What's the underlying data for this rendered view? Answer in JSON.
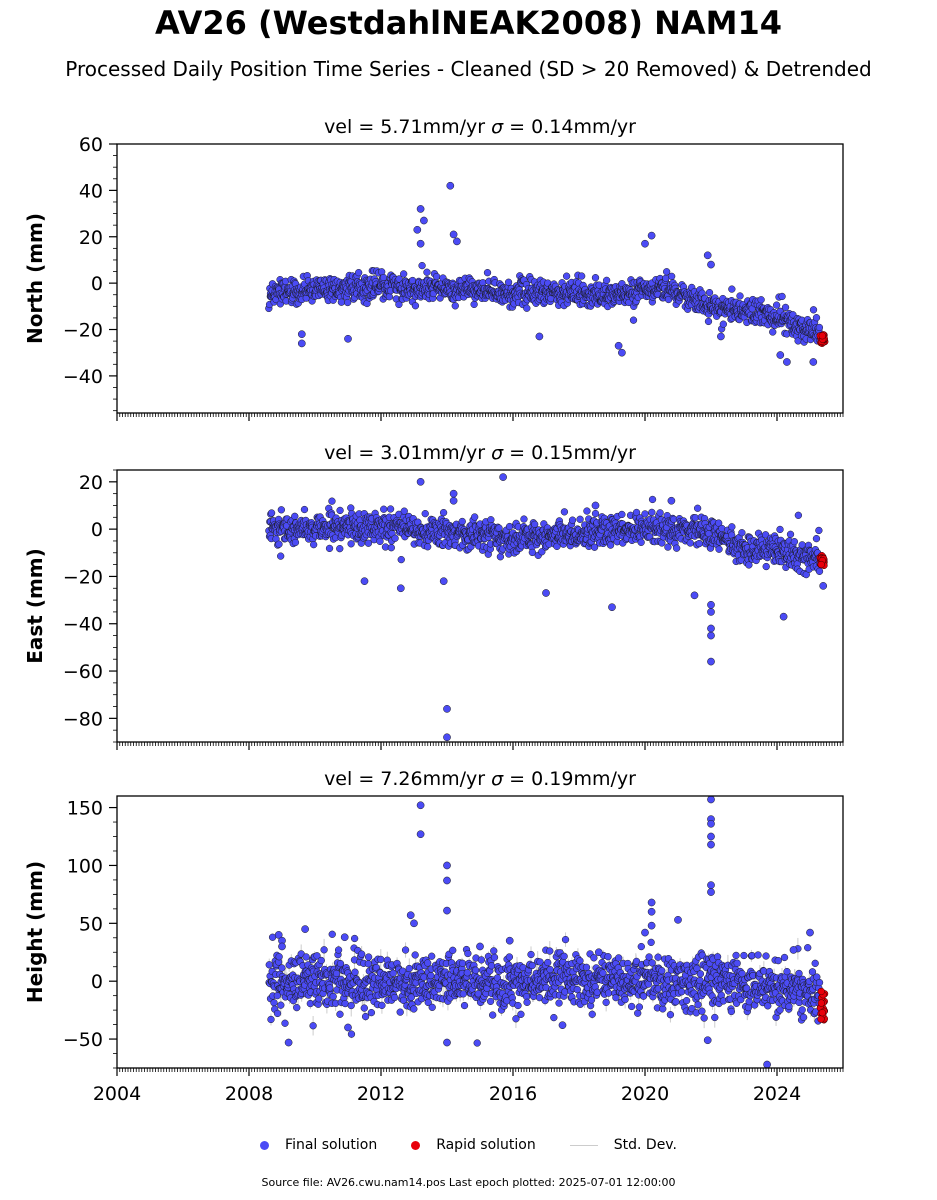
{
  "title": "AV26 (WestdahlNEAK2008) NAM14",
  "subtitle": "Processed Daily Position Time Series - Cleaned (SD > 20 Removed) & Detrended",
  "legend": {
    "final": "Final solution",
    "rapid": "Rapid solution",
    "std": "Std. Dev."
  },
  "source_note": "Source file: AV26.cwu.nam14.pos  Last epoch plotted: 2025-07-01 12:00:00",
  "colors": {
    "final": "#4b4bf5",
    "rapid": "#e8000b",
    "std_dev": "#cccccc"
  },
  "chart_data": [
    {
      "type": "scatter",
      "panel": "north",
      "title_vel": "vel = 5.71mm/yr",
      "title_sigma_symbol": "σ",
      "title_sigma_rest": " = 0.14mm/yr",
      "ylabel": "North (mm)",
      "xlim": [
        2004,
        2026
      ],
      "ylim": [
        -56,
        60
      ],
      "yticks": [
        "−40",
        "−20",
        "0",
        "20",
        "40",
        "60"
      ],
      "ytick_values": [
        -40,
        -20,
        0,
        20,
        40,
        60
      ],
      "xticks": [
        2004,
        2008,
        2012,
        2016,
        2020,
        2024
      ],
      "xtick_labels_shown": false,
      "trend_x": [
        2008.6,
        2012,
        2016,
        2019,
        2020.5,
        2022,
        2023.5,
        2025.3
      ],
      "trend_y": [
        -4,
        -1,
        -4,
        -5,
        -2,
        -10,
        -13,
        -22
      ],
      "scatter_sd": 2.5,
      "rapid_x": [
        2025.3,
        2025.45
      ],
      "rapid_y": [
        -22,
        -26
      ],
      "outliers": [
        [
          2014.1,
          42
        ],
        [
          2013.2,
          32
        ],
        [
          2013.3,
          27
        ],
        [
          2013.1,
          23
        ],
        [
          2014.2,
          21
        ],
        [
          2014.3,
          18
        ],
        [
          2013.2,
          17
        ],
        [
          2020.2,
          20.5
        ],
        [
          2020.0,
          17
        ],
        [
          2021.9,
          12
        ],
        [
          2022.0,
          8
        ],
        [
          2009.6,
          -26
        ],
        [
          2009.6,
          -22
        ],
        [
          2019.3,
          -30
        ],
        [
          2019.2,
          -27
        ],
        [
          2011.0,
          -24
        ],
        [
          2024.3,
          -34
        ],
        [
          2025.1,
          -34
        ],
        [
          2024.1,
          -31
        ],
        [
          2016.8,
          -23
        ],
        [
          2022.3,
          -23
        ]
      ]
    },
    {
      "type": "scatter",
      "panel": "east",
      "title_vel": "vel = 3.01mm/yr",
      "title_sigma_symbol": "σ",
      "title_sigma_rest": " = 0.15mm/yr",
      "ylabel": "East (mm)",
      "xlim": [
        2004,
        2026
      ],
      "ylim": [
        -90,
        25
      ],
      "yticks": [
        "−80",
        "−60",
        "−40",
        "−20",
        "0",
        "20"
      ],
      "ytick_values": [
        -80,
        -60,
        -40,
        -20,
        0,
        20
      ],
      "xticks": [
        2004,
        2008,
        2012,
        2016,
        2020,
        2024
      ],
      "xtick_labels_shown": false,
      "trend_x": [
        2008.6,
        2012,
        2016,
        2020,
        2021.5,
        2023,
        2024.5,
        2025.3
      ],
      "trend_y": [
        0,
        1,
        -4,
        0,
        0,
        -8,
        -10,
        -13
      ],
      "scatter_sd": 3,
      "rapid_x": [
        2025.3,
        2025.45
      ],
      "rapid_y": [
        -11,
        -16
      ],
      "outliers": [
        [
          2014.0,
          -76
        ],
        [
          2014.0,
          -88
        ],
        [
          2022.0,
          -56
        ],
        [
          2022.0,
          -45
        ],
        [
          2022.0,
          -42
        ],
        [
          2022.0,
          -35
        ],
        [
          2022.0,
          -32
        ],
        [
          2019.0,
          -33
        ],
        [
          2024.2,
          -37
        ],
        [
          2025.4,
          -24
        ],
        [
          2013.2,
          20
        ],
        [
          2015.7,
          22
        ],
        [
          2014.2,
          15
        ],
        [
          2014.2,
          12
        ],
        [
          2020.8,
          12
        ],
        [
          2018.5,
          10
        ],
        [
          2021.5,
          -28
        ],
        [
          2017.0,
          -27
        ],
        [
          2012.6,
          -25
        ],
        [
          2011.5,
          -22
        ],
        [
          2013.9,
          -22
        ]
      ]
    },
    {
      "type": "scatter",
      "panel": "height",
      "title_vel": "vel = 7.26mm/yr",
      "title_sigma_symbol": "σ",
      "title_sigma_rest": " = 0.19mm/yr",
      "ylabel": "Height (mm)",
      "xlim": [
        2004,
        2026
      ],
      "ylim": [
        -75,
        160
      ],
      "yticks": [
        "−50",
        "0",
        "50",
        "100",
        "150"
      ],
      "ytick_values": [
        -50,
        0,
        50,
        100,
        150
      ],
      "xticks": [
        2004,
        2008,
        2012,
        2016,
        2020,
        2024
      ],
      "xtick_labels_shown": true,
      "xtick_labels": [
        "2004",
        "2008",
        "2012",
        "2016",
        "2020",
        "2024"
      ],
      "trend_x": [
        2008.6,
        2012,
        2016,
        2020,
        2022,
        2024,
        2025.3
      ],
      "trend_y": [
        0,
        0,
        0,
        0,
        -2,
        -5,
        -12
      ],
      "scatter_sd": 11,
      "rapid_x": [
        2025.3,
        2025.45
      ],
      "rapid_y": [
        -8,
        -35
      ],
      "outliers": [
        [
          2013.2,
          152
        ],
        [
          2013.2,
          127
        ],
        [
          2014.0,
          100
        ],
        [
          2014.0,
          87
        ],
        [
          2014.0,
          61
        ],
        [
          2014.0,
          -53
        ],
        [
          2022.0,
          157
        ],
        [
          2022.0,
          140
        ],
        [
          2022.0,
          136
        ],
        [
          2022.0,
          125
        ],
        [
          2022.0,
          118
        ],
        [
          2022.0,
          83
        ],
        [
          2022.0,
          77
        ],
        [
          2020.2,
          68
        ],
        [
          2020.2,
          60
        ],
        [
          2020.2,
          48
        ],
        [
          2020.0,
          42
        ],
        [
          2021.0,
          53
        ],
        [
          2009.7,
          45
        ],
        [
          2025.0,
          42
        ],
        [
          2023.7,
          -72
        ],
        [
          2021.9,
          -51
        ],
        [
          2009.2,
          -53
        ],
        [
          2024.5,
          27
        ],
        [
          2011.0,
          -40
        ],
        [
          2017.5,
          -38
        ],
        [
          2008.9,
          40
        ],
        [
          2009.0,
          35
        ],
        [
          2009.0,
          30
        ],
        [
          2010.9,
          38
        ],
        [
          2012.9,
          57
        ],
        [
          2013.0,
          50
        ],
        [
          2015.9,
          35
        ],
        [
          2018.6,
          25
        ],
        [
          2015.0,
          30
        ]
      ]
    }
  ]
}
